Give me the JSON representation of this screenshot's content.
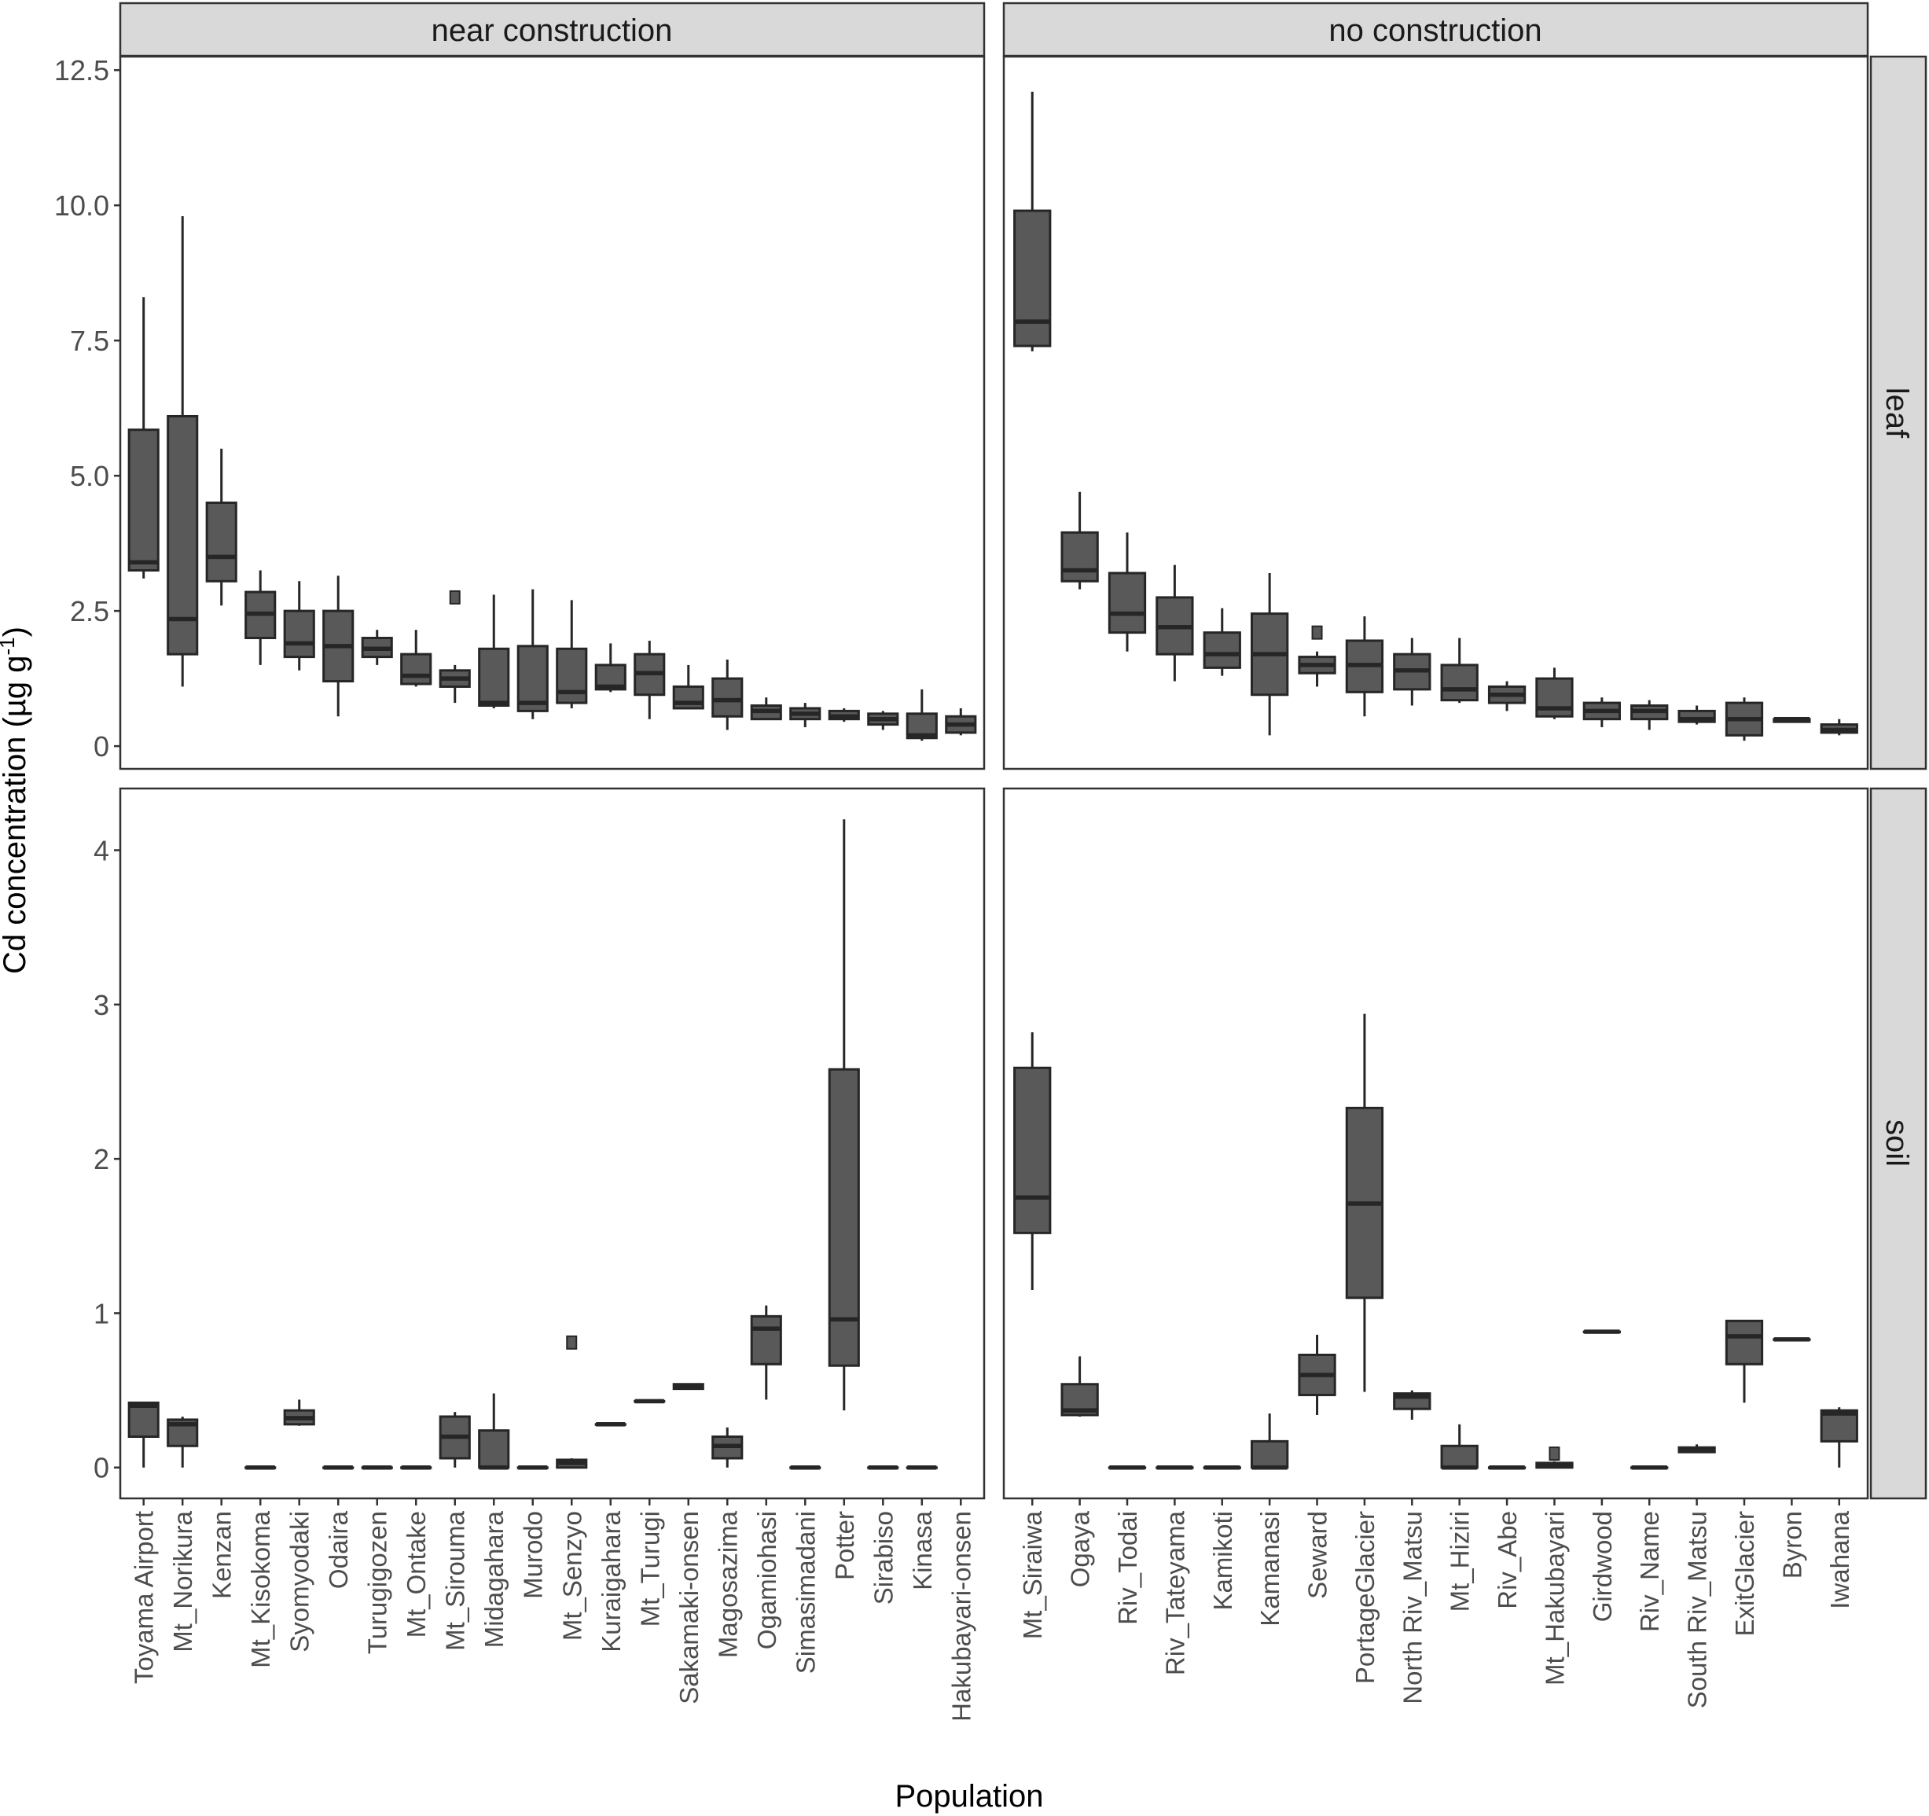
{
  "chart_data": {
    "type": "boxplot",
    "ylabel": "Cd concentration (µg g",
    "ylabel_sup": "-1",
    "ylabel_close": ")",
    "xlabel": "Population",
    "facet_cols": [
      "near construction",
      "no construction"
    ],
    "facet_rows": [
      "leaf",
      "soil"
    ],
    "rows": [
      {
        "name": "leaf",
        "ylim": [
          -0.42,
          12.75
        ],
        "ticks": [
          0,
          2.5,
          5,
          7.5,
          10,
          12.5
        ],
        "tick_labels": [
          "0",
          "2.5",
          "5.0",
          "7.5",
          "10.0",
          "12.5"
        ]
      },
      {
        "name": "soil",
        "ylim": [
          -0.2,
          4.4
        ],
        "ticks": [
          0,
          1,
          2,
          3,
          4
        ],
        "tick_labels": [
          "0",
          "1",
          "2",
          "3",
          "4"
        ]
      }
    ],
    "panels": [
      {
        "row": "leaf",
        "col": "near construction",
        "categories": [
          "Toyama Airport",
          "Mt_Norikura",
          "Kenzan",
          "Mt_Kisokoma",
          "Syomyodaki",
          "Odaira",
          "Turugigozen",
          "Mt_Ontake",
          "Mt_Sirouma",
          "Midagahara",
          "Murodo",
          "Mt_Senzyo",
          "Kuraigahara",
          "Mt_Turugi",
          "Sakamaki-onsen",
          "Magosazima",
          "Ogamiohasi",
          "Simasimadani",
          "Potter",
          "Sirabiso",
          "Kinasa",
          "Hakubayari-onsen"
        ],
        "boxes": [
          {
            "lw": 3.1,
            "q1": 3.25,
            "med": 3.4,
            "q3": 5.85,
            "uw": 8.3,
            "out": []
          },
          {
            "lw": 1.1,
            "q1": 1.7,
            "med": 2.35,
            "q3": 6.1,
            "uw": 9.8,
            "out": []
          },
          {
            "lw": 2.6,
            "q1": 3.05,
            "med": 3.5,
            "q3": 4.5,
            "uw": 5.5,
            "out": []
          },
          {
            "lw": 1.5,
            "q1": 2.0,
            "med": 2.45,
            "q3": 2.85,
            "uw": 3.25,
            "out": []
          },
          {
            "lw": 1.4,
            "q1": 1.65,
            "med": 1.9,
            "q3": 2.5,
            "uw": 3.05,
            "out": []
          },
          {
            "lw": 0.55,
            "q1": 1.2,
            "med": 1.85,
            "q3": 2.5,
            "uw": 3.15,
            "out": []
          },
          {
            "lw": 1.5,
            "q1": 1.65,
            "med": 1.8,
            "q3": 2.0,
            "uw": 2.15,
            "out": []
          },
          {
            "lw": 1.1,
            "q1": 1.15,
            "med": 1.3,
            "q3": 1.7,
            "uw": 2.15,
            "out": []
          },
          {
            "lw": 0.8,
            "q1": 1.1,
            "med": 1.25,
            "q3": 1.4,
            "uw": 1.5,
            "out": [
              2.75
            ]
          },
          {
            "lw": 0.7,
            "q1": 0.75,
            "med": 0.8,
            "q3": 1.8,
            "uw": 2.8,
            "out": []
          },
          {
            "lw": 0.5,
            "q1": 0.65,
            "med": 0.8,
            "q3": 1.85,
            "uw": 2.9,
            "out": []
          },
          {
            "lw": 0.7,
            "q1": 0.8,
            "med": 1.0,
            "q3": 1.8,
            "uw": 2.7,
            "out": []
          },
          {
            "lw": 1.0,
            "q1": 1.05,
            "med": 1.1,
            "q3": 1.5,
            "uw": 1.9,
            "out": []
          },
          {
            "lw": 0.5,
            "q1": 0.95,
            "med": 1.35,
            "q3": 1.7,
            "uw": 1.95,
            "out": []
          },
          {
            "lw": 0.7,
            "q1": 0.7,
            "med": 0.8,
            "q3": 1.1,
            "uw": 1.5,
            "out": []
          },
          {
            "lw": 0.3,
            "q1": 0.55,
            "med": 0.85,
            "q3": 1.25,
            "uw": 1.6,
            "out": []
          },
          {
            "lw": 0.5,
            "q1": 0.5,
            "med": 0.65,
            "q3": 0.75,
            "uw": 0.9,
            "out": []
          },
          {
            "lw": 0.35,
            "q1": 0.5,
            "med": 0.6,
            "q3": 0.7,
            "uw": 0.8,
            "out": []
          },
          {
            "lw": 0.45,
            "q1": 0.5,
            "med": 0.55,
            "q3": 0.65,
            "uw": 0.7,
            "out": []
          },
          {
            "lw": 0.3,
            "q1": 0.4,
            "med": 0.5,
            "q3": 0.6,
            "uw": 0.65,
            "out": []
          },
          {
            "lw": 0.1,
            "q1": 0.15,
            "med": 0.2,
            "q3": 0.6,
            "uw": 1.05,
            "out": []
          },
          {
            "lw": 0.2,
            "q1": 0.25,
            "med": 0.4,
            "q3": 0.55,
            "uw": 0.7,
            "out": []
          }
        ]
      },
      {
        "row": "leaf",
        "col": "no construction",
        "categories": [
          "Mt_Siraiwa",
          "Ogaya",
          "Riv_Todai",
          "Riv_Tateyama",
          "Kamikoti",
          "Kamanasi",
          "Seward",
          "PortageGlacier",
          "North Riv_Matsu",
          "Mt_Hiziri",
          "Riv_Abe",
          "Mt_Hakubayari",
          "Girdwood",
          "Riv_Name",
          "South Riv_Matsu",
          "ExitGlacier",
          "Byron",
          "Iwahana"
        ],
        "boxes": [
          {
            "lw": 7.3,
            "q1": 7.4,
            "med": 7.85,
            "q3": 9.9,
            "uw": 12.1,
            "out": []
          },
          {
            "lw": 2.9,
            "q1": 3.05,
            "med": 3.25,
            "q3": 3.95,
            "uw": 4.7,
            "out": []
          },
          {
            "lw": 1.75,
            "q1": 2.1,
            "med": 2.45,
            "q3": 3.2,
            "uw": 3.95,
            "out": []
          },
          {
            "lw": 1.2,
            "q1": 1.7,
            "med": 2.2,
            "q3": 2.75,
            "uw": 3.35,
            "out": []
          },
          {
            "lw": 1.3,
            "q1": 1.45,
            "med": 1.7,
            "q3": 2.1,
            "uw": 2.55,
            "out": []
          },
          {
            "lw": 0.2,
            "q1": 0.95,
            "med": 1.7,
            "q3": 2.45,
            "uw": 3.2,
            "out": []
          },
          {
            "lw": 1.1,
            "q1": 1.35,
            "med": 1.5,
            "q3": 1.65,
            "uw": 1.75,
            "out": [
              2.1
            ]
          },
          {
            "lw": 0.55,
            "q1": 1.0,
            "med": 1.5,
            "q3": 1.95,
            "uw": 2.4,
            "out": []
          },
          {
            "lw": 0.75,
            "q1": 1.05,
            "med": 1.4,
            "q3": 1.7,
            "uw": 2.0,
            "out": []
          },
          {
            "lw": 0.8,
            "q1": 0.85,
            "med": 1.05,
            "q3": 1.5,
            "uw": 2.0,
            "out": []
          },
          {
            "lw": 0.65,
            "q1": 0.8,
            "med": 0.95,
            "q3": 1.1,
            "uw": 1.2,
            "out": []
          },
          {
            "lw": 0.5,
            "q1": 0.55,
            "med": 0.7,
            "q3": 1.25,
            "uw": 1.45,
            "out": []
          },
          {
            "lw": 0.35,
            "q1": 0.5,
            "med": 0.65,
            "q3": 0.8,
            "uw": 0.9,
            "out": []
          },
          {
            "lw": 0.3,
            "q1": 0.5,
            "med": 0.65,
            "q3": 0.75,
            "uw": 0.85,
            "out": []
          },
          {
            "lw": 0.4,
            "q1": 0.45,
            "med": 0.5,
            "q3": 0.65,
            "uw": 0.75,
            "out": []
          },
          {
            "lw": 0.1,
            "q1": 0.2,
            "med": 0.5,
            "q3": 0.8,
            "uw": 0.9,
            "out": []
          },
          {
            "lw": 0.45,
            "q1": 0.45,
            "med": 0.5,
            "q3": 0.5,
            "uw": 0.5,
            "out": []
          },
          {
            "lw": 0.2,
            "q1": 0.25,
            "med": 0.3,
            "q3": 0.4,
            "uw": 0.5,
            "out": []
          }
        ]
      },
      {
        "row": "soil",
        "col": "near construction",
        "categories": [
          "Toyama Airport",
          "Mt_Norikura",
          "Kenzan",
          "Mt_Kisokoma",
          "Syomyodaki",
          "Odaira",
          "Turugigozen",
          "Mt_Ontake",
          "Mt_Sirouma",
          "Midagahara",
          "Murodo",
          "Mt_Senzyo",
          "Kuraigahara",
          "Mt_Turugi",
          "Sakamaki-onsen",
          "Magosazima",
          "Ogamiohasi",
          "Simasimadani",
          "Potter",
          "Sirabiso",
          "Kinasa",
          "Hakubayari-onsen"
        ],
        "boxes": [
          {
            "lw": 0.0,
            "q1": 0.2,
            "med": 0.4,
            "q3": 0.42,
            "uw": 0.42,
            "out": []
          },
          {
            "lw": 0.0,
            "q1": 0.14,
            "med": 0.28,
            "q3": 0.31,
            "uw": 0.33,
            "out": []
          },
          null,
          {
            "lw": 0.0,
            "q1": 0.0,
            "med": 0.0,
            "q3": 0.0,
            "uw": 0.0,
            "out": []
          },
          {
            "lw": 0.27,
            "q1": 0.28,
            "med": 0.32,
            "q3": 0.37,
            "uw": 0.44,
            "out": []
          },
          {
            "lw": 0.0,
            "q1": 0.0,
            "med": 0.0,
            "q3": 0.0,
            "uw": 0.0,
            "out": []
          },
          {
            "lw": 0.0,
            "q1": 0.0,
            "med": 0.0,
            "q3": 0.0,
            "uw": 0.0,
            "out": []
          },
          {
            "lw": 0.0,
            "q1": 0.0,
            "med": 0.0,
            "q3": 0.0,
            "uw": 0.0,
            "out": []
          },
          {
            "lw": 0.0,
            "q1": 0.06,
            "med": 0.2,
            "q3": 0.33,
            "uw": 0.36,
            "out": []
          },
          {
            "lw": 0.0,
            "q1": 0.0,
            "med": 0.0,
            "q3": 0.24,
            "uw": 0.48,
            "out": []
          },
          {
            "lw": 0.0,
            "q1": 0.0,
            "med": 0.0,
            "q3": 0.0,
            "uw": 0.0,
            "out": []
          },
          {
            "lw": 0.0,
            "q1": 0.0,
            "med": 0.03,
            "q3": 0.05,
            "uw": 0.06,
            "out": [
              0.81
            ]
          },
          {
            "lw": 0.28,
            "q1": 0.28,
            "med": 0.28,
            "q3": 0.28,
            "uw": 0.28,
            "out": []
          },
          {
            "lw": 0.43,
            "q1": 0.43,
            "med": 0.43,
            "q3": 0.43,
            "uw": 0.43,
            "out": []
          },
          {
            "lw": 0.51,
            "q1": 0.51,
            "med": 0.52,
            "q3": 0.54,
            "uw": 0.54,
            "out": []
          },
          {
            "lw": 0.0,
            "q1": 0.06,
            "med": 0.14,
            "q3": 0.2,
            "uw": 0.26,
            "out": []
          },
          {
            "lw": 0.44,
            "q1": 0.67,
            "med": 0.9,
            "q3": 0.98,
            "uw": 1.05,
            "out": []
          },
          {
            "lw": 0.0,
            "q1": 0.0,
            "med": 0.0,
            "q3": 0.0,
            "uw": 0.0,
            "out": []
          },
          {
            "lw": 0.37,
            "q1": 0.66,
            "med": 0.96,
            "q3": 2.58,
            "uw": 4.2,
            "out": []
          },
          {
            "lw": 0.0,
            "q1": 0.0,
            "med": 0.0,
            "q3": 0.0,
            "uw": 0.0,
            "out": []
          },
          {
            "lw": 0.0,
            "q1": 0.0,
            "med": 0.0,
            "q3": 0.0,
            "uw": 0.0,
            "out": []
          },
          null
        ]
      },
      {
        "row": "soil",
        "col": "no construction",
        "categories": [
          "Mt_Siraiwa",
          "Ogaya",
          "Riv_Todai",
          "Riv_Tateyama",
          "Kamikoti",
          "Kamanasi",
          "Seward",
          "PortageGlacier",
          "North Riv_Matsu",
          "Mt_Hiziri",
          "Riv_Abe",
          "Mt_Hakubayari",
          "Girdwood",
          "Riv_Name",
          "South Riv_Matsu",
          "ExitGlacier",
          "Byron",
          "Iwahana"
        ],
        "boxes": [
          {
            "lw": 1.15,
            "q1": 1.52,
            "med": 1.75,
            "q3": 2.59,
            "uw": 2.82,
            "out": []
          },
          {
            "lw": 0.33,
            "q1": 0.34,
            "med": 0.37,
            "q3": 0.54,
            "uw": 0.72,
            "out": []
          },
          {
            "lw": 0.0,
            "q1": 0.0,
            "med": 0.0,
            "q3": 0.0,
            "uw": 0.0,
            "out": []
          },
          {
            "lw": 0.0,
            "q1": 0.0,
            "med": 0.0,
            "q3": 0.0,
            "uw": 0.0,
            "out": []
          },
          {
            "lw": 0.0,
            "q1": 0.0,
            "med": 0.0,
            "q3": 0.0,
            "uw": 0.0,
            "out": []
          },
          {
            "lw": 0.0,
            "q1": 0.0,
            "med": 0.0,
            "q3": 0.17,
            "uw": 0.35,
            "out": []
          },
          {
            "lw": 0.34,
            "q1": 0.47,
            "med": 0.6,
            "q3": 0.73,
            "uw": 0.86,
            "out": []
          },
          {
            "lw": 0.49,
            "q1": 1.1,
            "med": 1.71,
            "q3": 2.33,
            "uw": 2.94,
            "out": []
          },
          {
            "lw": 0.31,
            "q1": 0.38,
            "med": 0.46,
            "q3": 0.48,
            "uw": 0.5,
            "out": []
          },
          {
            "lw": 0.0,
            "q1": 0.0,
            "med": 0.0,
            "q3": 0.14,
            "uw": 0.28,
            "out": []
          },
          {
            "lw": 0.0,
            "q1": 0.0,
            "med": 0.0,
            "q3": 0.0,
            "uw": 0.0,
            "out": []
          },
          {
            "lw": 0.0,
            "q1": 0.0,
            "med": 0.02,
            "q3": 0.03,
            "uw": 0.04,
            "out": [
              0.09
            ]
          },
          {
            "lw": 0.88,
            "q1": 0.88,
            "med": 0.88,
            "q3": 0.88,
            "uw": 0.88,
            "out": []
          },
          {
            "lw": 0.0,
            "q1": 0.0,
            "med": 0.0,
            "q3": 0.0,
            "uw": 0.0,
            "out": []
          },
          {
            "lw": 0.1,
            "q1": 0.1,
            "med": 0.12,
            "q3": 0.13,
            "uw": 0.15,
            "out": []
          },
          {
            "lw": 0.42,
            "q1": 0.67,
            "med": 0.85,
            "q3": 0.95,
            "uw": 0.95,
            "out": []
          },
          {
            "lw": 0.83,
            "q1": 0.83,
            "med": 0.83,
            "q3": 0.83,
            "uw": 0.83,
            "out": []
          },
          {
            "lw": 0.0,
            "q1": 0.17,
            "med": 0.35,
            "q3": 0.37,
            "uw": 0.39,
            "out": []
          }
        ]
      }
    ]
  }
}
